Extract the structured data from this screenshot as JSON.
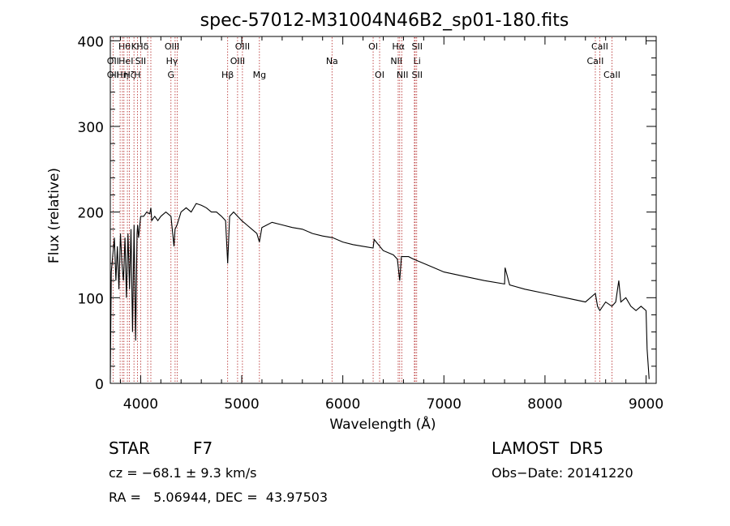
{
  "chart_data": {
    "type": "line",
    "title": "spec-57012-M31004N46B2_sp01-180.fits",
    "xlabel": "Wavelength (Å)",
    "ylabel": "Flux (relative)",
    "xlim": [
      3700,
      9100
    ],
    "ylim": [
      0,
      405
    ],
    "xticks": [
      4000,
      5000,
      6000,
      7000,
      8000,
      9000
    ],
    "yticks": [
      0,
      100,
      200,
      300,
      400
    ],
    "grid": false,
    "series": [
      {
        "color": "#000000",
        "x": [
          3700,
          3710,
          3725,
          3740,
          3755,
          3770,
          3785,
          3800,
          3815,
          3830,
          3845,
          3860,
          3875,
          3890,
          3905,
          3920,
          3935,
          3950,
          3965,
          3970,
          3980,
          4000,
          4030,
          4060,
          4090,
          4101,
          4110,
          4140,
          4170,
          4200,
          4250,
          4300,
          4330,
          4340,
          4360,
          4400,
          4450,
          4500,
          4550,
          4600,
          4650,
          4700,
          4750,
          4800,
          4840,
          4861,
          4880,
          4920,
          4960,
          5000,
          5050,
          5100,
          5150,
          5175,
          5200,
          5250,
          5300,
          5400,
          5500,
          5600,
          5700,
          5800,
          5900,
          6000,
          6100,
          6200,
          6300,
          6310,
          6400,
          6500,
          6540,
          6563,
          6580,
          6650,
          6700,
          6800,
          6900,
          7000,
          7200,
          7400,
          7600,
          7605,
          7650,
          7800,
          8000,
          8200,
          8400,
          8498,
          8520,
          8542,
          8600,
          8662,
          8700,
          8730,
          8750,
          8800,
          8850,
          8900,
          8950,
          9000,
          9010,
          9030
        ],
        "y": [
          5,
          130,
          150,
          170,
          120,
          160,
          110,
          175,
          140,
          120,
          170,
          100,
          175,
          110,
          180,
          60,
          185,
          50,
          175,
          185,
          170,
          195,
          195,
          200,
          198,
          205,
          190,
          195,
          190,
          195,
          200,
          195,
          160,
          180,
          185,
          200,
          205,
          200,
          210,
          208,
          205,
          200,
          200,
          195,
          190,
          140,
          195,
          200,
          195,
          190,
          185,
          180,
          175,
          165,
          182,
          185,
          188,
          185,
          182,
          180,
          175,
          172,
          170,
          165,
          162,
          160,
          158,
          168,
          155,
          150,
          145,
          120,
          148,
          148,
          145,
          140,
          135,
          130,
          125,
          120,
          116,
          135,
          115,
          110,
          105,
          100,
          95,
          105,
          90,
          85,
          95,
          90,
          95,
          120,
          95,
          100,
          90,
          85,
          90,
          85,
          40,
          5
        ]
      }
    ],
    "lines": [
      {
        "x": 3727,
        "label": "OII",
        "row": 3,
        "label_x": 3727
      },
      {
        "x": 3797,
        "label": "Hθ",
        "row": 1,
        "label_x": 3840
      },
      {
        "x": 3820,
        "label": "OII",
        "row": 2,
        "label_x": 3727
      },
      {
        "x": 3835,
        "label": "Hη",
        "row": 3,
        "label_x": 3820
      },
      {
        "x": 3869,
        "label": "HeI",
        "row": 2,
        "label_x": 3855
      },
      {
        "x": 3889,
        "label": "Hζ",
        "row": 3,
        "label_x": 3890
      },
      {
        "x": 3934,
        "label": "K",
        "row": 1,
        "label_x": 3935
      },
      {
        "x": 3968,
        "label": "H",
        "row": 3,
        "label_x": 3968
      },
      {
        "x": 4000,
        "label": "SII",
        "row": 2,
        "label_x": 4000
      },
      {
        "x": 4070,
        "label": "Hδ",
        "row": 1,
        "label_x": 4020
      },
      {
        "x": 4101,
        "label": "",
        "row": 0,
        "label_x": 4101
      },
      {
        "x": 4300,
        "label": "G",
        "row": 3,
        "label_x": 4300
      },
      {
        "x": 4341,
        "label": "Hγ",
        "row": 2,
        "label_x": 4310
      },
      {
        "x": 4363,
        "label": "OIII",
        "row": 1,
        "label_x": 4310
      },
      {
        "x": 4861,
        "label": "Hβ",
        "row": 3,
        "label_x": 4861
      },
      {
        "x": 4959,
        "label": "OIII",
        "row": 2,
        "label_x": 4959
      },
      {
        "x": 5007,
        "label": "OIII",
        "row": 1,
        "label_x": 5007
      },
      {
        "x": 5175,
        "label": "Mg",
        "row": 3,
        "label_x": 5175
      },
      {
        "x": 5893,
        "label": "Na",
        "row": 2,
        "label_x": 5893
      },
      {
        "x": 6300,
        "label": "OI",
        "row": 1,
        "label_x": 6300
      },
      {
        "x": 6364,
        "label": "OI",
        "row": 3,
        "label_x": 6364
      },
      {
        "x": 6548,
        "label": "NII",
        "row": 2,
        "label_x": 6530
      },
      {
        "x": 6563,
        "label": "Hα",
        "row": 1,
        "label_x": 6550
      },
      {
        "x": 6583,
        "label": "NII",
        "row": 3,
        "label_x": 6590
      },
      {
        "x": 6708,
        "label": "Li",
        "row": 2,
        "label_x": 6735
      },
      {
        "x": 6716,
        "label": "SII",
        "row": 1,
        "label_x": 6735
      },
      {
        "x": 6731,
        "label": "SII",
        "row": 3,
        "label_x": 6735
      },
      {
        "x": 8498,
        "label": "CaII",
        "row": 2,
        "label_x": 8498
      },
      {
        "x": 8542,
        "label": "CaII",
        "row": 1,
        "label_x": 8542
      },
      {
        "x": 8662,
        "label": "CaII",
        "row": 3,
        "label_x": 8662
      }
    ]
  },
  "footer": {
    "class_label": "STAR",
    "subclass": "F7",
    "survey": "LAMOST  DR5",
    "cz": "cz = −68.1 ± 9.3 km/s",
    "obs_date": "Obs−Date: 20141220",
    "radec": "RA =   5.06944, DEC =  43.97503"
  }
}
